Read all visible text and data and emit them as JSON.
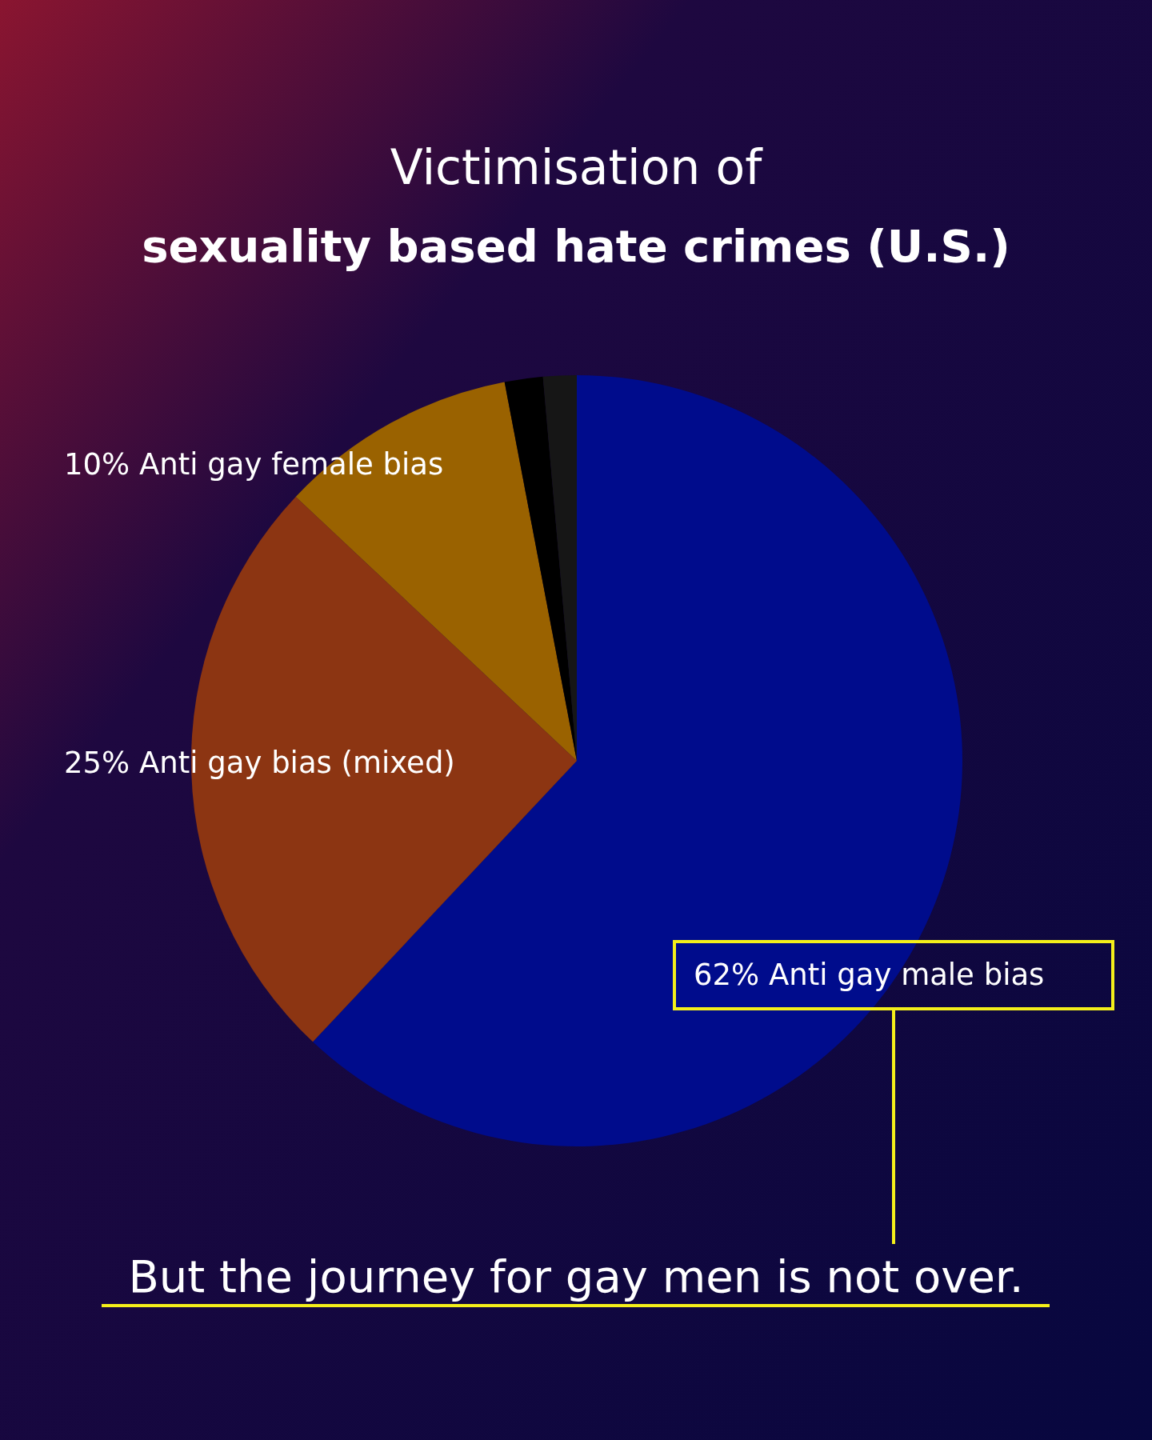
{
  "chart_data": {
    "type": "pie",
    "title": "Victimisation of",
    "subtitle": "sexuality based hate crimes (U.S.)",
    "categories": [
      "Anti gay male bias",
      "Anti gay bias (mixed)",
      "Anti gay female bias",
      null,
      null
    ],
    "values": [
      62,
      25,
      10,
      1.6,
      1.4
    ],
    "value_labels": [
      "62%",
      "25%",
      "10%",
      null,
      null
    ],
    "colors": [
      "#000c8c",
      "#8c3512",
      "#9a6200",
      "#000000",
      "#161616"
    ],
    "annotations": [
      "But the journey for gay men is not over."
    ]
  }
}
